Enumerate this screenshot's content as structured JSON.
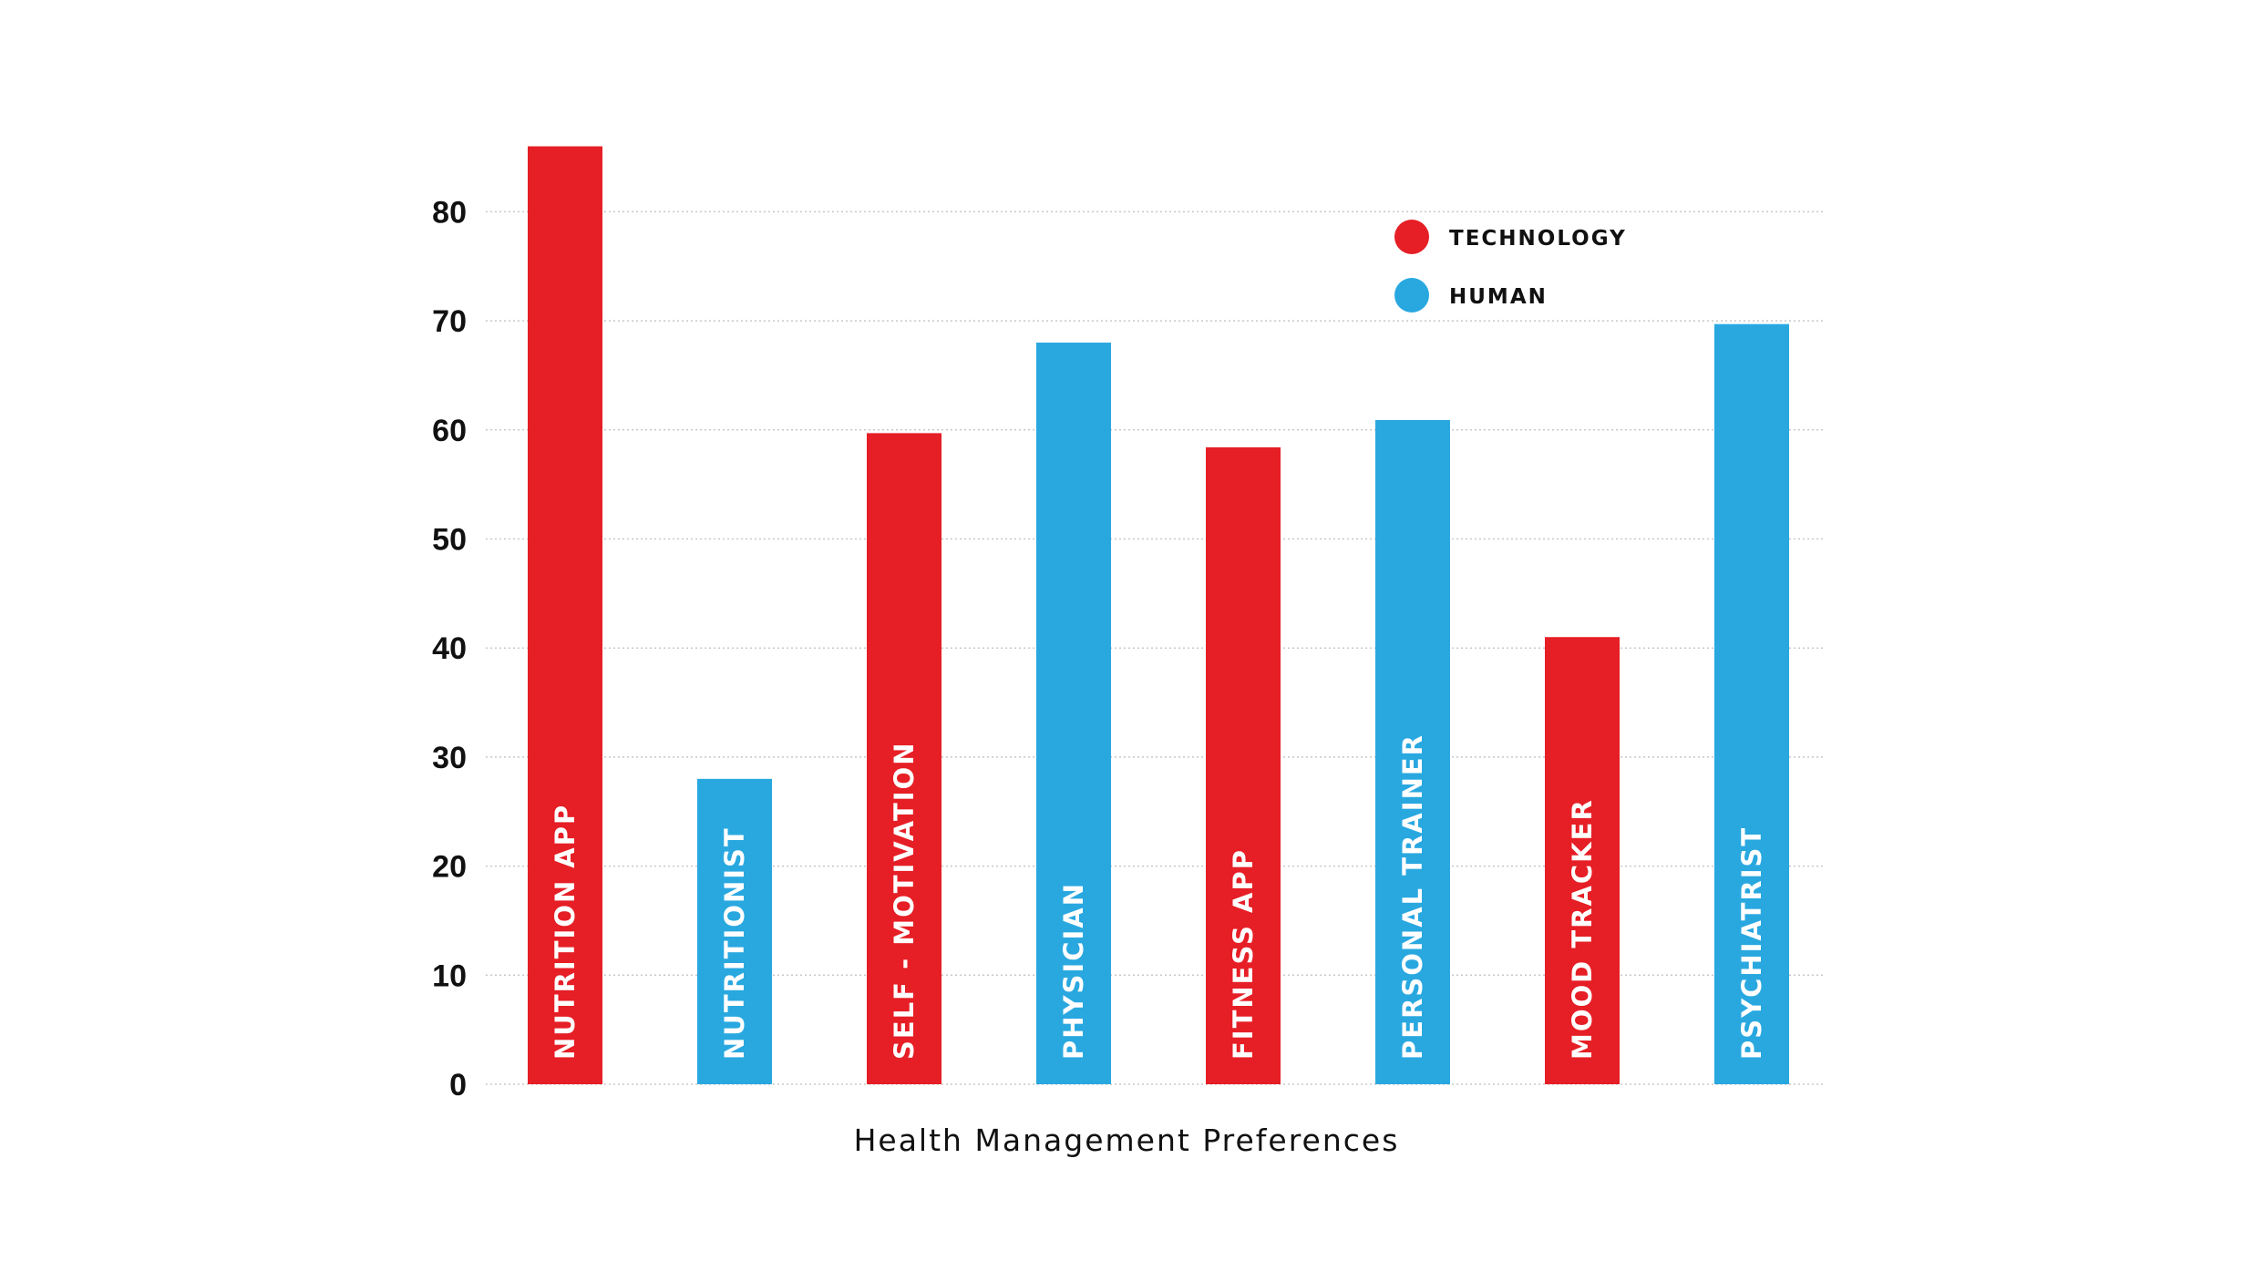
{
  "chart_data": {
    "type": "bar",
    "title": "",
    "xlabel": "Health Management Preferences",
    "ylabel": "",
    "ylim": [
      0,
      86
    ],
    "yticks": [
      0,
      10,
      20,
      30,
      40,
      50,
      60,
      70,
      80
    ],
    "grid": true,
    "legend_position": "top-right",
    "categories": [
      "NUTRITION APP",
      "NUTRITIONIST",
      "SELF - MOTIVATION",
      "PHYSICIAN",
      "FITNESS APP",
      "PERSONAL TRAINER",
      "MOOD TRACKER",
      "PSYCHIATRIST"
    ],
    "values": [
      86,
      28,
      59.7,
      68,
      58.4,
      60.9,
      41,
      69.7
    ],
    "groups": [
      "TECHNOLOGY",
      "HUMAN",
      "TECHNOLOGY",
      "HUMAN",
      "TECHNOLOGY",
      "HUMAN",
      "TECHNOLOGY",
      "HUMAN"
    ],
    "legend": [
      {
        "label": "TECHNOLOGY",
        "color": "#e61e25"
      },
      {
        "label": "HUMAN",
        "color": "#29a8e0"
      }
    ]
  }
}
